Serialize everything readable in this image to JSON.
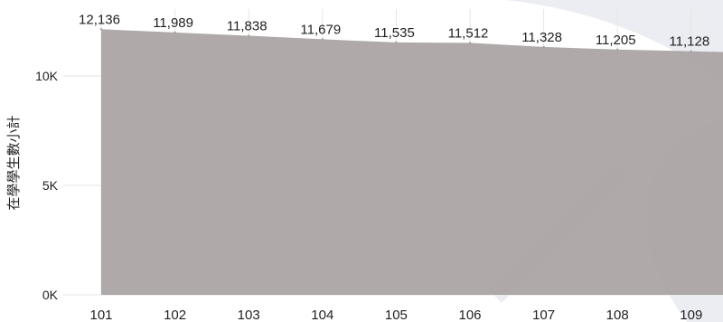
{
  "chart_data": {
    "type": "area",
    "ylabel": "在學學生數小計",
    "xlabel": "",
    "categories": [
      "101",
      "102",
      "103",
      "104",
      "105",
      "106",
      "107",
      "108",
      "109"
    ],
    "series": [
      {
        "values": [
          12136,
          11989,
          11838,
          11679,
          11535,
          11512,
          11328,
          11205,
          11128
        ],
        "color": "#a9a2a3",
        "labels": [
          "12,136",
          "11,989",
          "11,838",
          "11,679",
          "11,535",
          "11,512",
          "11,328",
          "11,205",
          "11,128"
        ]
      }
    ],
    "yticks": [
      {
        "value": 0,
        "label": "0K"
      },
      {
        "value": 5000,
        "label": "5K"
      },
      {
        "value": 10000,
        "label": "10K"
      }
    ],
    "ylim": [
      0,
      13800
    ],
    "grid": true
  }
}
